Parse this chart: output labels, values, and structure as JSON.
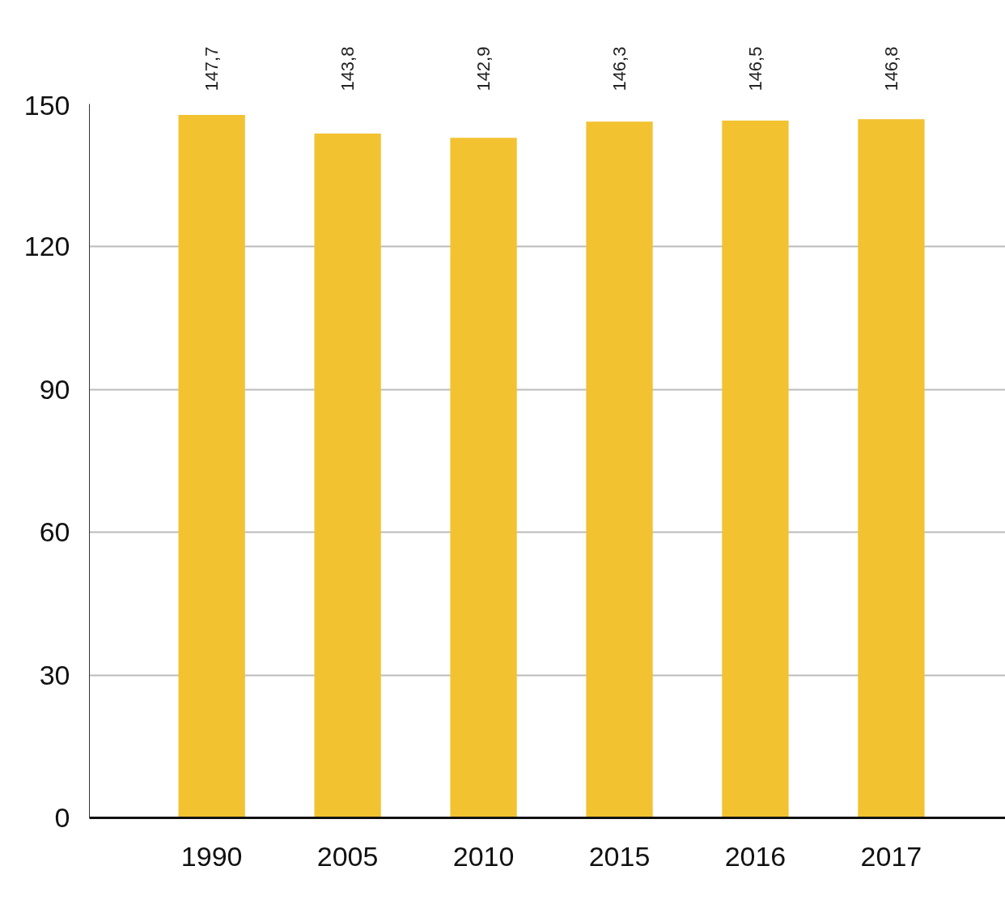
{
  "chart_data": {
    "type": "bar",
    "categories": [
      "1990",
      "2005",
      "2010",
      "2015",
      "2016",
      "2017"
    ],
    "values": [
      147.7,
      143.8,
      142.9,
      146.3,
      146.5,
      146.8
    ],
    "value_labels": [
      "147,7",
      "143,8",
      "142,9",
      "146,3",
      "146,5",
      "146,8"
    ],
    "color": "#f2c230",
    "ylim": [
      0,
      150
    ],
    "yticks": [
      0,
      30,
      60,
      90,
      120,
      150
    ],
    "grid": "y"
  }
}
